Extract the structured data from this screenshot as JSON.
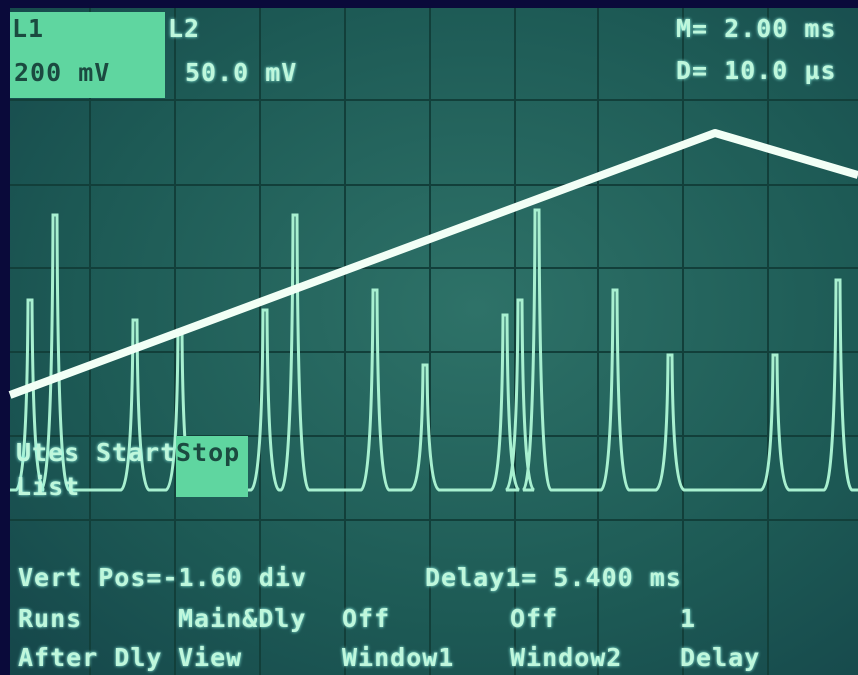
{
  "header": {
    "ch1_label": "L1",
    "ch1_scale": "200 mV",
    "ch2_label": "L2",
    "ch2_scale": "50.0 mV",
    "main_timebase": "M= 2.00 ms",
    "delay_timebase": "D= 10.0 µs"
  },
  "menu": {
    "items": [
      "Utes",
      "Start",
      "Stop",
      "List"
    ]
  },
  "status": {
    "vert_pos": "Vert Pos=-1.60 div",
    "delay": "Delay1= 5.400 ms"
  },
  "softkeys": {
    "row1": [
      "Runs",
      "Main&Dly",
      "Off",
      "Off",
      "1"
    ],
    "row2": [
      "After Dly",
      "View",
      "Window1",
      "Window2",
      "Delay"
    ]
  }
}
